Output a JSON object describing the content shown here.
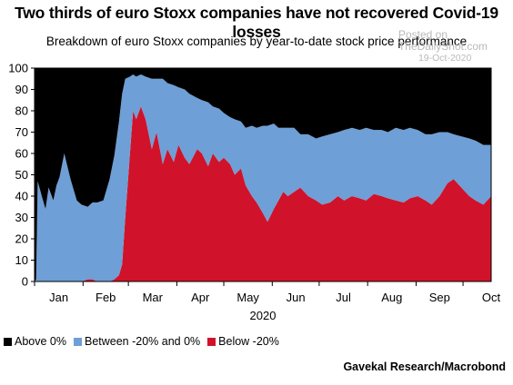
{
  "title": "Two thirds of euro Stoxx companies have not recovered Covid-19 losses",
  "subtitle": "Breakdown of euro Stoxx companies by year-to-date stock price performance",
  "watermark": {
    "line1": "Posted on",
    "line2": "TheDailyShot.com",
    "date": "19-Oct-2020"
  },
  "source": "Gavekal Research/Macrobond",
  "colors": {
    "above": "#000000",
    "between": "#6e9fd6",
    "below": "#d0132a"
  },
  "chart_data": {
    "type": "area",
    "stacked": true,
    "xlabel": "2020",
    "ylabel": "",
    "ylim": [
      0,
      100
    ],
    "yticks": [
      0,
      10,
      20,
      30,
      40,
      50,
      60,
      70,
      80,
      90,
      100
    ],
    "grid": false,
    "legend_position": "bottom-left",
    "months": [
      "Jan",
      "Feb",
      "Mar",
      "Apr",
      "May",
      "Jun",
      "Jul",
      "Aug",
      "Sep",
      "Oct"
    ],
    "x_domain": [
      "2020-01-01",
      "2020-10-19"
    ],
    "x": [
      "2020-01-01",
      "2020-01-02",
      "2020-01-03",
      "2020-01-06",
      "2020-01-08",
      "2020-01-10",
      "2020-01-13",
      "2020-01-15",
      "2020-01-17",
      "2020-01-20",
      "2020-01-24",
      "2020-01-28",
      "2020-01-31",
      "2020-02-04",
      "2020-02-07",
      "2020-02-10",
      "2020-02-14",
      "2020-02-18",
      "2020-02-21",
      "2020-02-24",
      "2020-02-26",
      "2020-02-28",
      "2020-03-02",
      "2020-03-04",
      "2020-03-06",
      "2020-03-09",
      "2020-03-12",
      "2020-03-16",
      "2020-03-19",
      "2020-03-23",
      "2020-03-26",
      "2020-03-30",
      "2020-04-02",
      "2020-04-06",
      "2020-04-09",
      "2020-04-14",
      "2020-04-17",
      "2020-04-21",
      "2020-04-24",
      "2020-04-28",
      "2020-05-01",
      "2020-05-05",
      "2020-05-08",
      "2020-05-12",
      "2020-05-15",
      "2020-05-19",
      "2020-05-22",
      "2020-05-26",
      "2020-05-29",
      "2020-06-02",
      "2020-06-05",
      "2020-06-08",
      "2020-06-11",
      "2020-06-15",
      "2020-06-19",
      "2020-06-24",
      "2020-06-29",
      "2020-07-03",
      "2020-07-08",
      "2020-07-13",
      "2020-07-17",
      "2020-07-22",
      "2020-07-27",
      "2020-07-31",
      "2020-08-05",
      "2020-08-10",
      "2020-08-14",
      "2020-08-19",
      "2020-08-24",
      "2020-08-28",
      "2020-09-02",
      "2020-09-07",
      "2020-09-11",
      "2020-09-16",
      "2020-09-21",
      "2020-09-25",
      "2020-09-30",
      "2020-10-05",
      "2020-10-09",
      "2020-10-14",
      "2020-10-19"
    ],
    "series": [
      {
        "name": "Below -20%",
        "values": [
          0,
          0,
          0,
          0,
          0,
          0,
          0,
          0,
          0,
          0,
          0,
          0,
          0,
          1,
          1,
          0,
          0,
          0,
          1,
          3,
          8,
          30,
          60,
          80,
          76,
          82,
          76,
          62,
          70,
          55,
          62,
          56,
          64,
          58,
          55,
          62,
          60,
          54,
          60,
          56,
          58,
          55,
          50,
          53,
          45,
          40,
          37,
          32,
          28,
          34,
          38,
          42,
          40,
          42,
          44,
          40,
          38,
          36,
          37,
          40,
          38,
          40,
          39,
          38,
          41,
          40,
          39,
          38,
          37,
          39,
          40,
          38,
          36,
          40,
          46,
          48,
          44,
          40,
          38,
          36,
          40
        ]
      },
      {
        "name": "Between -20% and 0%",
        "values": [
          0,
          1,
          47,
          39,
          34,
          44,
          38,
          45,
          49,
          60,
          48,
          38,
          36,
          34,
          36,
          37,
          38,
          48,
          58,
          72,
          80,
          65,
          36,
          17,
          20,
          15,
          20,
          33,
          25,
          40,
          31,
          36,
          27,
          32,
          33,
          24,
          25,
          30,
          22,
          25,
          21,
          22,
          26,
          22,
          27,
          33,
          35,
          41,
          45,
          40,
          34,
          30,
          32,
          30,
          25,
          29,
          29,
          32,
          32,
          30,
          33,
          32,
          32,
          34,
          30,
          31,
          31,
          34,
          34,
          33,
          31,
          31,
          33,
          30,
          24,
          21,
          24,
          27,
          28,
          28,
          24
        ]
      },
      {
        "name": "Above 0%",
        "values": [
          100,
          99,
          53,
          61,
          66,
          56,
          62,
          55,
          51,
          40,
          52,
          62,
          64,
          65,
          63,
          63,
          62,
          52,
          41,
          25,
          12,
          5,
          4,
          3,
          4,
          3,
          4,
          5,
          5,
          5,
          7,
          8,
          9,
          10,
          12,
          14,
          15,
          16,
          18,
          19,
          21,
          23,
          24,
          25,
          28,
          27,
          28,
          27,
          27,
          26,
          28,
          28,
          28,
          28,
          31,
          31,
          33,
          32,
          31,
          30,
          29,
          28,
          29,
          28,
          29,
          29,
          30,
          28,
          29,
          28,
          29,
          31,
          31,
          30,
          30,
          31,
          32,
          33,
          34,
          36,
          36
        ]
      }
    ]
  }
}
